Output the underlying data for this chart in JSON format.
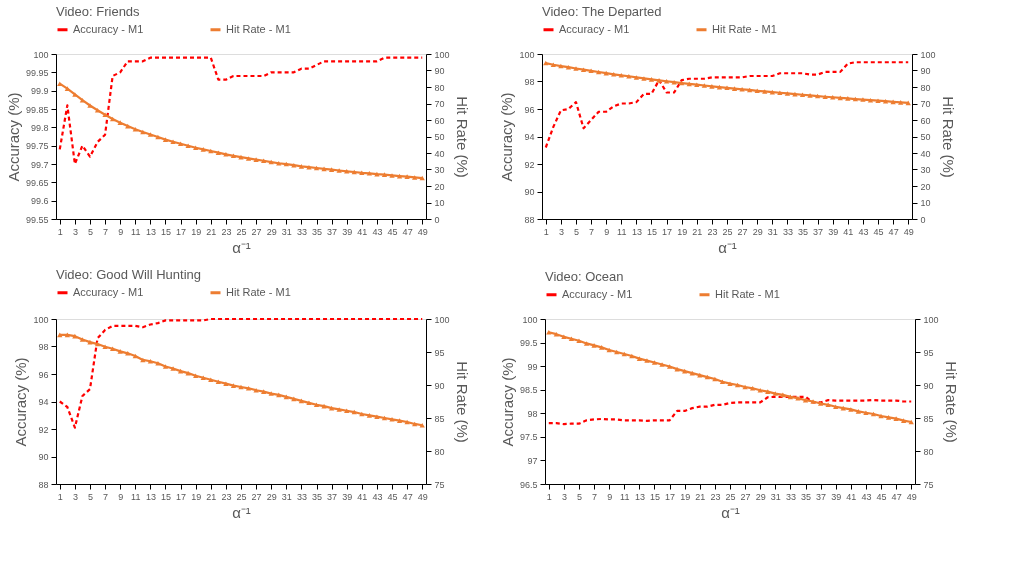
{
  "chart_data": [
    {
      "type": "line",
      "title": "Video: Friends",
      "xlabel": "α⁻¹",
      "ylabel": "Accuracy (%)",
      "y2label": "Hit Rate (%)",
      "legend": "top",
      "grid": false,
      "x": [
        1,
        2,
        3,
        4,
        5,
        6,
        7,
        8,
        9,
        10,
        11,
        12,
        13,
        14,
        15,
        16,
        17,
        18,
        19,
        20,
        21,
        22,
        23,
        24,
        25,
        26,
        27,
        28,
        29,
        30,
        31,
        32,
        33,
        34,
        35,
        36,
        37,
        38,
        39,
        40,
        41,
        42,
        43,
        44,
        45,
        46,
        47,
        48,
        49
      ],
      "xlim": [
        0.5,
        49.5
      ],
      "xticks": [
        1,
        3,
        5,
        7,
        9,
        11,
        13,
        15,
        17,
        19,
        21,
        23,
        25,
        27,
        29,
        31,
        33,
        35,
        37,
        39,
        41,
        43,
        45,
        47,
        49
      ],
      "ylim": [
        99.55,
        100
      ],
      "yticks": [
        99.55,
        99.6,
        99.65,
        99.7,
        99.75,
        99.8,
        99.85,
        99.9,
        99.95,
        100
      ],
      "y2lim": [
        0,
        100
      ],
      "y2ticks": [
        0,
        10,
        20,
        30,
        40,
        50,
        60,
        70,
        80,
        90,
        100
      ],
      "series": [
        {
          "name": "Accuracy - M1",
          "color": "#ff0000",
          "line_style": "dashed",
          "marker": "none",
          "values": [
            99.74,
            99.86,
            99.7,
            99.75,
            99.72,
            99.76,
            99.78,
            99.94,
            99.95,
            99.98,
            99.98,
            99.98,
            99.99,
            99.99,
            99.99,
            99.99,
            99.99,
            99.99,
            99.99,
            99.99,
            99.99,
            99.93,
            99.93,
            99.94,
            99.94,
            99.94,
            99.94,
            99.94,
            99.95,
            99.95,
            99.95,
            99.95,
            99.96,
            99.96,
            99.97,
            99.98,
            99.98,
            99.98,
            99.98,
            99.98,
            99.98,
            99.98,
            99.98,
            99.99,
            99.99,
            99.99,
            99.99,
            99.99,
            99.99
          ]
        },
        {
          "name": "Hit Rate - M1",
          "color": "#ed7d31",
          "line_style": "solid",
          "marker": "triangle",
          "axis": "y2",
          "values": [
            82,
            79,
            75.5,
            72,
            68.8,
            65.9,
            63.2,
            60.6,
            58.4,
            56.3,
            54.4,
            52.7,
            51.2,
            49.7,
            48.1,
            46.8,
            45.6,
            44.4,
            43.2,
            42.2,
            41.2,
            40.2,
            39.2,
            38.3,
            37.5,
            36.7,
            36,
            35.3,
            34.5,
            33.8,
            33.3,
            32.6,
            31.9,
            31.4,
            30.9,
            30.4,
            29.9,
            29.4,
            28.9,
            28.5,
            28,
            27.7,
            27.2,
            26.9,
            26.4,
            26,
            25.7,
            25.2,
            24.8
          ]
        }
      ]
    },
    {
      "type": "line",
      "title": "Video: The Departed",
      "xlabel": "α⁻¹",
      "ylabel": "Accuracy (%)",
      "y2label": "Hit Rate (%)",
      "legend": "top",
      "grid": false,
      "x": [
        1,
        2,
        3,
        4,
        5,
        6,
        7,
        8,
        9,
        10,
        11,
        12,
        13,
        14,
        15,
        16,
        17,
        18,
        19,
        20,
        21,
        22,
        23,
        24,
        25,
        26,
        27,
        28,
        29,
        30,
        31,
        32,
        33,
        34,
        35,
        36,
        37,
        38,
        39,
        40,
        41,
        42,
        43,
        44,
        45,
        46,
        47,
        48,
        49
      ],
      "xlim": [
        0.5,
        49.5
      ],
      "xticks": [
        1,
        3,
        5,
        7,
        9,
        11,
        13,
        15,
        17,
        19,
        21,
        23,
        25,
        27,
        29,
        31,
        33,
        35,
        37,
        39,
        41,
        43,
        45,
        47,
        49
      ],
      "ylim": [
        88,
        100
      ],
      "yticks": [
        88,
        90,
        92,
        94,
        96,
        98,
        100
      ],
      "y2lim": [
        0,
        100
      ],
      "y2ticks": [
        0,
        10,
        20,
        30,
        40,
        50,
        60,
        70,
        80,
        90,
        100
      ],
      "series": [
        {
          "name": "Accuracy - M1",
          "color": "#ff0000",
          "line_style": "dashed",
          "marker": "none",
          "values": [
            93.2,
            94.7,
            95.9,
            96.0,
            96.5,
            94.6,
            95.2,
            95.8,
            95.8,
            96.2,
            96.4,
            96.4,
            96.5,
            97.1,
            97.1,
            98.1,
            97.2,
            97.2,
            98.1,
            98.2,
            98.2,
            98.2,
            98.3,
            98.3,
            98.3,
            98.3,
            98.3,
            98.4,
            98.4,
            98.4,
            98.4,
            98.6,
            98.6,
            98.6,
            98.6,
            98.5,
            98.5,
            98.7,
            98.7,
            98.7,
            99.3,
            99.4,
            99.4,
            99.4,
            99.4,
            99.4,
            99.4,
            99.4,
            99.4
          ]
        },
        {
          "name": "Hit Rate - M1",
          "color": "#ed7d31",
          "line_style": "solid",
          "marker": "triangle",
          "axis": "y2",
          "values": [
            94.5,
            93.5,
            92.7,
            92.0,
            91.2,
            90.5,
            89.8,
            89.1,
            88.4,
            87.7,
            87.1,
            86.5,
            85.8,
            85.2,
            84.6,
            84.0,
            83.5,
            82.9,
            82.4,
            81.9,
            81.4,
            80.9,
            80.4,
            79.9,
            79.5,
            79.0,
            78.6,
            78.2,
            77.7,
            77.3,
            76.9,
            76.5,
            76.1,
            75.7,
            75.3,
            74.9,
            74.5,
            74.1,
            73.8,
            73.4,
            73.1,
            72.7,
            72.4,
            72.0,
            71.7,
            71.4,
            71.0,
            70.7,
            70.4
          ]
        }
      ]
    },
    {
      "type": "line",
      "title": "Video: Good Will Hunting",
      "xlabel": "α⁻¹",
      "ylabel": "Accuracy (%)",
      "y2label": "Hit Rate (%)",
      "legend": "top",
      "grid": false,
      "x": [
        1,
        2,
        3,
        4,
        5,
        6,
        7,
        8,
        9,
        10,
        11,
        12,
        13,
        14,
        15,
        16,
        17,
        18,
        19,
        20,
        21,
        22,
        23,
        24,
        25,
        26,
        27,
        28,
        29,
        30,
        31,
        32,
        33,
        34,
        35,
        36,
        37,
        38,
        39,
        40,
        41,
        42,
        43,
        44,
        45,
        46,
        47,
        48,
        49
      ],
      "xlim": [
        0.5,
        49.5
      ],
      "xticks": [
        1,
        3,
        5,
        7,
        9,
        11,
        13,
        15,
        17,
        19,
        21,
        23,
        25,
        27,
        29,
        31,
        33,
        35,
        37,
        39,
        41,
        43,
        45,
        47,
        49
      ],
      "ylim": [
        88,
        100
      ],
      "yticks": [
        88,
        90,
        92,
        94,
        96,
        98,
        100
      ],
      "y2lim": [
        75,
        100
      ],
      "y2ticks": [
        75,
        80,
        85,
        90,
        95,
        100
      ],
      "series": [
        {
          "name": "Accuracy - M1",
          "color": "#ff0000",
          "line_style": "dashed",
          "marker": "none",
          "values": [
            94.0,
            93.6,
            92.1,
            94.4,
            94.9,
            98.6,
            99.2,
            99.5,
            99.5,
            99.5,
            99.5,
            99.4,
            99.6,
            99.7,
            99.9,
            99.9,
            99.9,
            99.9,
            99.9,
            99.9,
            100,
            100,
            100,
            100,
            100,
            100,
            100,
            100,
            100,
            100,
            100,
            100,
            100,
            100,
            100,
            100,
            100,
            100,
            100,
            100,
            100,
            100,
            100,
            100,
            100,
            100,
            100,
            100,
            100
          ]
        },
        {
          "name": "Hit Rate - M1",
          "color": "#ed7d31",
          "line_style": "solid",
          "marker": "triangle",
          "axis": "y2",
          "values": [
            97.6,
            97.6,
            97.4,
            96.9,
            96.5,
            96.2,
            95.8,
            95.5,
            95.1,
            94.8,
            94.4,
            93.8,
            93.6,
            93.3,
            92.8,
            92.5,
            92.1,
            91.8,
            91.4,
            91.1,
            90.8,
            90.5,
            90.2,
            89.9,
            89.7,
            89.5,
            89.2,
            89.0,
            88.7,
            88.5,
            88.2,
            87.9,
            87.6,
            87.3,
            87.0,
            86.8,
            86.5,
            86.3,
            86.1,
            85.9,
            85.6,
            85.4,
            85.2,
            85.0,
            84.8,
            84.6,
            84.4,
            84.1,
            83.9
          ]
        }
      ]
    },
    {
      "type": "line",
      "title": "Video: Ocean",
      "xlabel": "α⁻¹",
      "ylabel": "Accuracy (%)",
      "y2label": "Hit Rate (%)",
      "legend": "top",
      "grid": false,
      "x": [
        1,
        2,
        3,
        4,
        5,
        6,
        7,
        8,
        9,
        10,
        11,
        12,
        13,
        14,
        15,
        16,
        17,
        18,
        19,
        20,
        21,
        22,
        23,
        24,
        25,
        26,
        27,
        28,
        29,
        30,
        31,
        32,
        33,
        34,
        35,
        36,
        37,
        38,
        39,
        40,
        41,
        42,
        43,
        44,
        45,
        46,
        47,
        48,
        49
      ],
      "xlim": [
        0.5,
        49.5
      ],
      "xticks": [
        1,
        3,
        5,
        7,
        9,
        11,
        13,
        15,
        17,
        19,
        21,
        23,
        25,
        27,
        29,
        31,
        33,
        35,
        37,
        39,
        41,
        43,
        45,
        47,
        49
      ],
      "ylim": [
        96.5,
        100
      ],
      "yticks": [
        96.5,
        97,
        97.5,
        98,
        98.5,
        99,
        99.5,
        100
      ],
      "y2lim": [
        75,
        100
      ],
      "y2ticks": [
        75,
        80,
        85,
        90,
        95,
        100
      ],
      "series": [
        {
          "name": "Accuracy - M1",
          "color": "#ff0000",
          "line_style": "dashed",
          "marker": "none",
          "values": [
            97.79,
            97.79,
            97.77,
            97.78,
            97.78,
            97.85,
            97.87,
            97.88,
            97.87,
            97.87,
            97.85,
            97.85,
            97.85,
            97.84,
            97.85,
            97.85,
            97.85,
            98.05,
            98.05,
            98.11,
            98.14,
            98.14,
            98.18,
            98.18,
            98.22,
            98.23,
            98.23,
            98.23,
            98.23,
            98.34,
            98.35,
            98.35,
            98.35,
            98.35,
            98.35,
            98.23,
            98.23,
            98.28,
            98.27,
            98.27,
            98.27,
            98.27,
            98.27,
            98.28,
            98.27,
            98.27,
            98.27,
            98.25,
            98.25
          ]
        },
        {
          "name": "Hit Rate - M1",
          "color": "#ed7d31",
          "line_style": "solid",
          "marker": "triangle",
          "axis": "y2",
          "values": [
            98.0,
            97.7,
            97.3,
            97.0,
            96.7,
            96.3,
            96.0,
            95.7,
            95.3,
            95.0,
            94.7,
            94.4,
            94.0,
            93.7,
            93.4,
            93.1,
            92.8,
            92.4,
            92.1,
            91.8,
            91.5,
            91.2,
            90.9,
            90.5,
            90.2,
            90.0,
            89.7,
            89.5,
            89.2,
            89.0,
            88.7,
            88.5,
            88.2,
            88.0,
            87.7,
            87.5,
            87.2,
            87.0,
            86.7,
            86.5,
            86.3,
            86.0,
            85.8,
            85.6,
            85.3,
            85.1,
            84.9,
            84.6,
            84.4
          ]
        }
      ]
    }
  ]
}
